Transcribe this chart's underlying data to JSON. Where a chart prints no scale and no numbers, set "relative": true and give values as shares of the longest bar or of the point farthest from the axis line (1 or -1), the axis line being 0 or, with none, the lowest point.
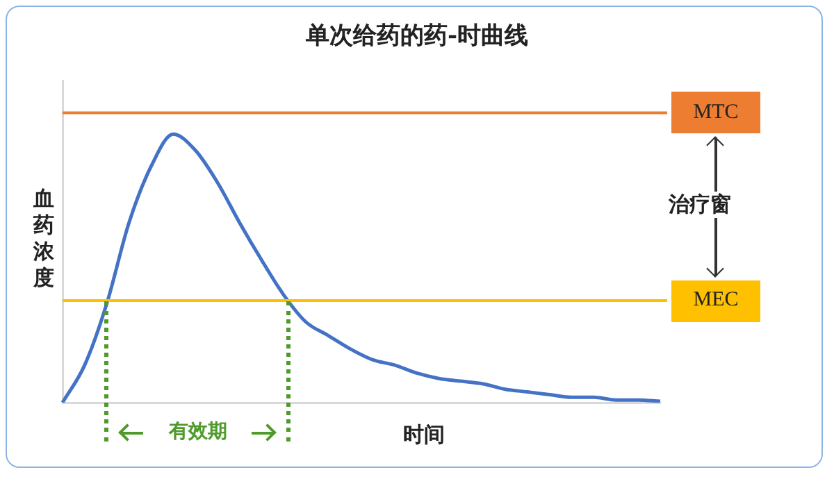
{
  "chart_data": {
    "type": "line",
    "title": "单次给药的药-时曲线",
    "xlabel": "时间",
    "ylabel": "血药浓度",
    "relative": true,
    "categories": [
      null,
      null,
      null,
      null,
      null,
      null,
      null,
      null,
      null,
      null,
      null,
      null,
      null,
      null,
      null,
      null,
      null,
      null,
      null,
      null,
      null,
      null,
      null,
      null,
      null,
      null,
      null,
      null
    ],
    "series": [
      {
        "color": "#4472c4",
        "values": [
          0,
          0.14,
          0.37,
          0.67,
          0.88,
          1,
          0.94,
          0.82,
          0.67,
          0.53,
          0.4,
          0.3,
          0.25,
          0.2,
          0.16,
          0.14,
          0.11,
          0.09,
          0.08,
          0.07,
          0.05,
          0.04,
          0.03,
          0.02,
          0.02,
          0.01,
          0.01,
          0.005
        ]
      }
    ],
    "ref_lines": [
      {
        "axis": "y",
        "value": 1.08,
        "label": "MTC",
        "color": "#ed7d31"
      },
      {
        "axis": "y",
        "value": 0.38,
        "label": "MEC",
        "color": "#ffc000"
      }
    ],
    "annotations": [
      "治疗窗",
      "有效期"
    ]
  }
}
